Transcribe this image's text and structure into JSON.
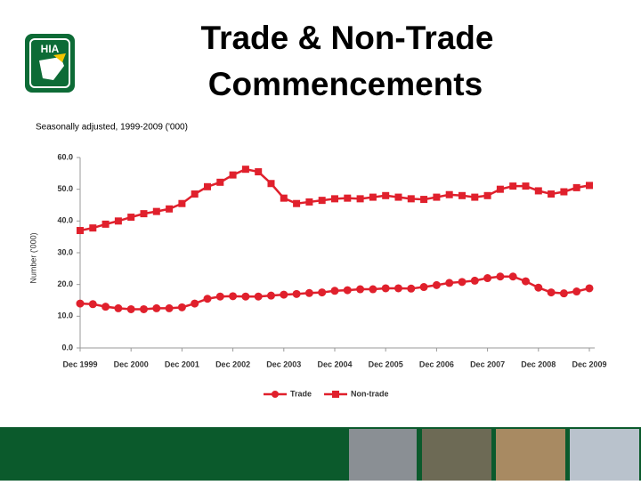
{
  "logo": "HIA",
  "chart_data": {
    "type": "line",
    "title": [
      "Trade & Non-Trade",
      "Commencements"
    ],
    "subtitle": "Seasonally adjusted, 1999-2009 ('000)",
    "y_label": "Number ('000)",
    "categories": [
      "Dec 1999",
      null,
      null,
      null,
      "Dec 2000",
      null,
      null,
      null,
      "Dec 2001",
      null,
      null,
      null,
      "Dec 2002",
      null,
      null,
      null,
      "Dec 2003",
      null,
      null,
      null,
      "Dec 2004",
      null,
      null,
      null,
      "Dec 2005",
      null,
      null,
      null,
      "Dec 2006",
      null,
      null,
      null,
      "Dec 2007",
      null,
      null,
      null,
      "Dec 2008",
      null,
      null,
      null,
      "Dec 2009"
    ],
    "series": [
      {
        "name": "Trade",
        "color": "#e0202c",
        "marker": "circle",
        "values": [
          14.0,
          13.8,
          13.0,
          12.5,
          12.2,
          12.2,
          12.5,
          12.5,
          12.8,
          14.0,
          15.5,
          16.2,
          16.3,
          16.2,
          16.2,
          16.5,
          16.8,
          17.0,
          17.3,
          17.5,
          18.0,
          18.2,
          18.5,
          18.5,
          18.8,
          18.8,
          18.7,
          19.2,
          19.8,
          20.5,
          20.8,
          21.2,
          22.0,
          22.5,
          22.5,
          21.0,
          19.0,
          17.5,
          17.2,
          17.8,
          18.8
        ]
      },
      {
        "name": "Non-trade",
        "color": "#e0202c",
        "marker": "square",
        "values": [
          37.0,
          37.8,
          39.0,
          40.0,
          41.2,
          42.3,
          43.0,
          43.8,
          45.5,
          48.5,
          50.8,
          52.2,
          54.5,
          56.3,
          55.5,
          51.8,
          47.2,
          45.5,
          46.0,
          46.5,
          47.0,
          47.2,
          47.0,
          47.5,
          48.0,
          47.5,
          47.0,
          46.8,
          47.5,
          48.3,
          48.0,
          47.5,
          48.0,
          50.0,
          51.0,
          51.0,
          49.5,
          48.5,
          49.2,
          50.5,
          51.2
        ]
      }
    ],
    "ylim": [
      0,
      60
    ],
    "yticks": [
      {
        "value": 0,
        "label": "0.0"
      },
      {
        "value": 10,
        "label": "10.0"
      },
      {
        "value": 20,
        "label": "20.0"
      },
      {
        "value": 30,
        "label": "30.0"
      },
      {
        "value": 40,
        "label": "40.0"
      },
      {
        "value": 50,
        "label": "50.0"
      },
      {
        "value": 60,
        "label": "60.0"
      }
    ],
    "grid": false,
    "legend": "bottom"
  }
}
